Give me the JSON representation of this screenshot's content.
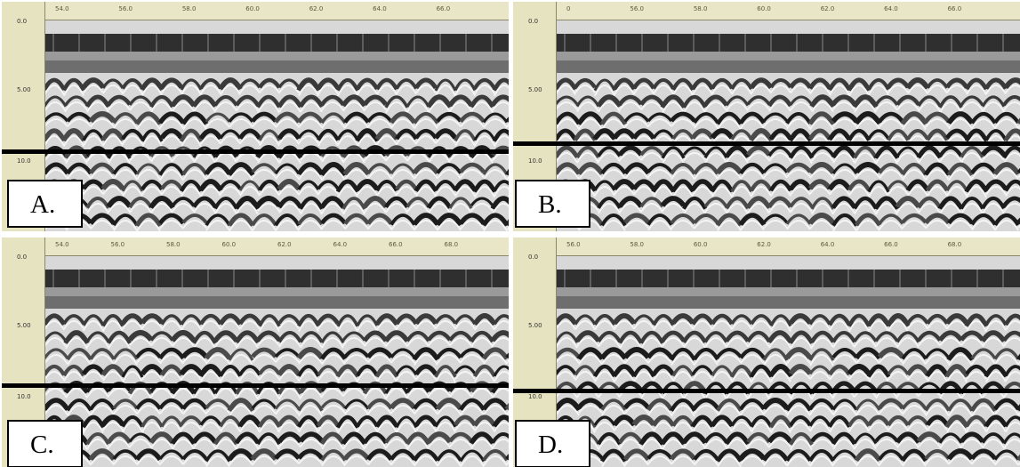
{
  "panels": [
    {
      "id": "A",
      "label": "A.",
      "top_ticks": [
        "54.0",
        "56.0",
        "58.0",
        "60.0",
        "62.0",
        "64.0",
        "66.0"
      ],
      "left_ticks": [
        "0.0",
        "5.00",
        "10.0"
      ]
    },
    {
      "id": "B",
      "label": "B.",
      "top_ticks": [
        "0",
        "56.0",
        "58.0",
        "60.0",
        "62.0",
        "64.0",
        "66.0"
      ],
      "left_ticks": [
        "0.0",
        "5.00",
        "10.0"
      ]
    },
    {
      "id": "C",
      "label": "C.",
      "top_ticks": [
        "54.0",
        "56.0",
        "58.0",
        "60.0",
        "62.0",
        "64.0",
        "66.0",
        "68.0"
      ],
      "left_ticks": [
        "0.0",
        "5.00",
        "10.0"
      ]
    },
    {
      "id": "D",
      "label": "D.",
      "top_ticks": [
        "56.0",
        "58.0",
        "60.0",
        "62.0",
        "64.0",
        "66.0",
        "68.0"
      ],
      "left_ticks": [
        "0.0",
        "5.00",
        "10.0"
      ]
    }
  ],
  "colors": {
    "ruler": "#e9e6c8",
    "band_dark": "#2b2b2b",
    "reflection_dark": "#1a1a1a",
    "background": "#ffffff"
  }
}
